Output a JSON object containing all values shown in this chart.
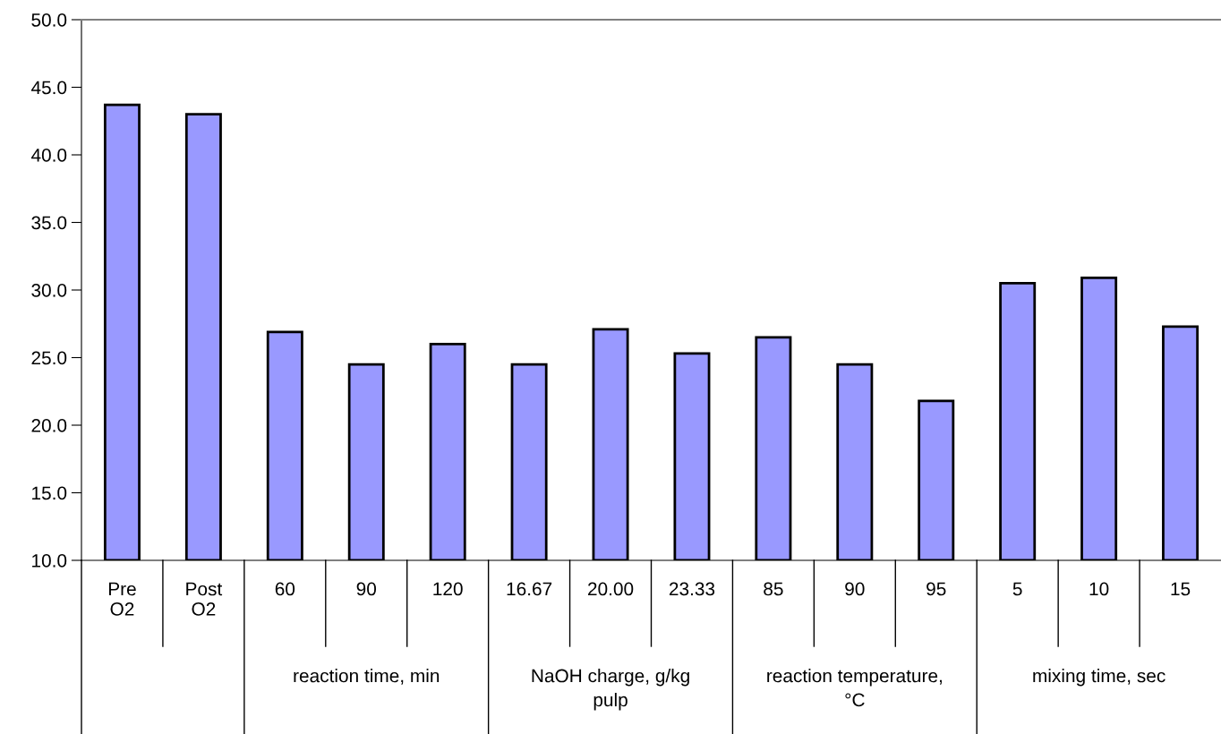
{
  "chart_data": {
    "type": "bar",
    "categories": [
      "Pre\nO2",
      "Post\nO2",
      "60",
      "90",
      "120",
      "16.67",
      "20.00",
      "23.33",
      "85",
      "90",
      "95",
      "5",
      "10",
      "15"
    ],
    "values": [
      43.7,
      43.0,
      26.9,
      24.5,
      26.0,
      24.5,
      27.1,
      25.3,
      26.5,
      24.5,
      21.8,
      30.5,
      30.9,
      27.3
    ],
    "color": "#9999ff",
    "ylim": [
      10,
      50
    ],
    "yticks": [
      {
        "value": 10,
        "label": "10.0"
      },
      {
        "value": 15,
        "label": "15.0"
      },
      {
        "value": 20,
        "label": "20.0"
      },
      {
        "value": 25,
        "label": "25.0"
      },
      {
        "value": 30,
        "label": "30.0"
      },
      {
        "value": 35,
        "label": "35.0"
      },
      {
        "value": 40,
        "label": "40.0"
      },
      {
        "value": 45,
        "label": "45.0"
      },
      {
        "value": 50,
        "label": "50.0"
      }
    ],
    "grid": false,
    "legend": false,
    "annotations": [
      "reaction time, min",
      "NaOH charge, g/kg\npulp",
      "reaction temperature,\n°C",
      "mixing time, sec"
    ]
  }
}
